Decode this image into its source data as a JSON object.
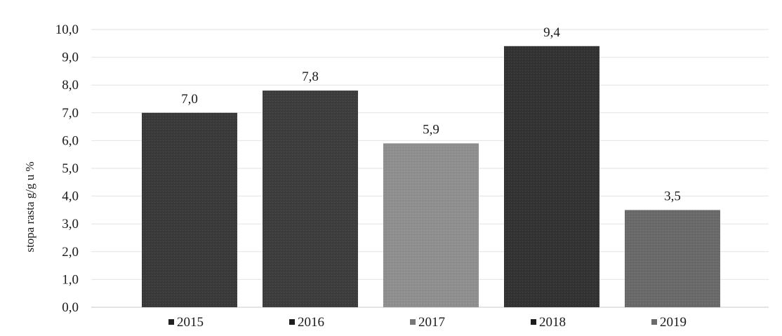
{
  "chart_data": {
    "type": "bar",
    "title": "",
    "xlabel": "",
    "ylabel": "stopa rasta g/g u %",
    "categories": [
      "2015",
      "2016",
      "2017",
      "2018",
      "2019"
    ],
    "values": [
      7.0,
      7.8,
      5.9,
      9.4,
      3.5
    ],
    "data_labels": [
      "7,0",
      "7,8",
      "5,9",
      "9,4",
      "3,5"
    ],
    "ylim": [
      0,
      10
    ],
    "yticks": [
      0,
      1,
      2,
      3,
      4,
      5,
      6,
      7,
      8,
      9,
      10
    ],
    "ytick_labels": [
      "0,0",
      "1,0",
      "2,0",
      "3,0",
      "4,0",
      "5,0",
      "6,0",
      "7,0",
      "8,0",
      "9,0",
      "10,0"
    ],
    "colors": [
      "#3a3a3a",
      "#3d3d3d",
      "#8f8f8f",
      "#333333",
      "#6a6a6a"
    ],
    "legend_marker_colors": [
      "#222222",
      "#1f1f1f",
      "#777777",
      "#1c1c1c",
      "#6a6a6a"
    ],
    "grid": true,
    "legend_placement": "bottom"
  }
}
